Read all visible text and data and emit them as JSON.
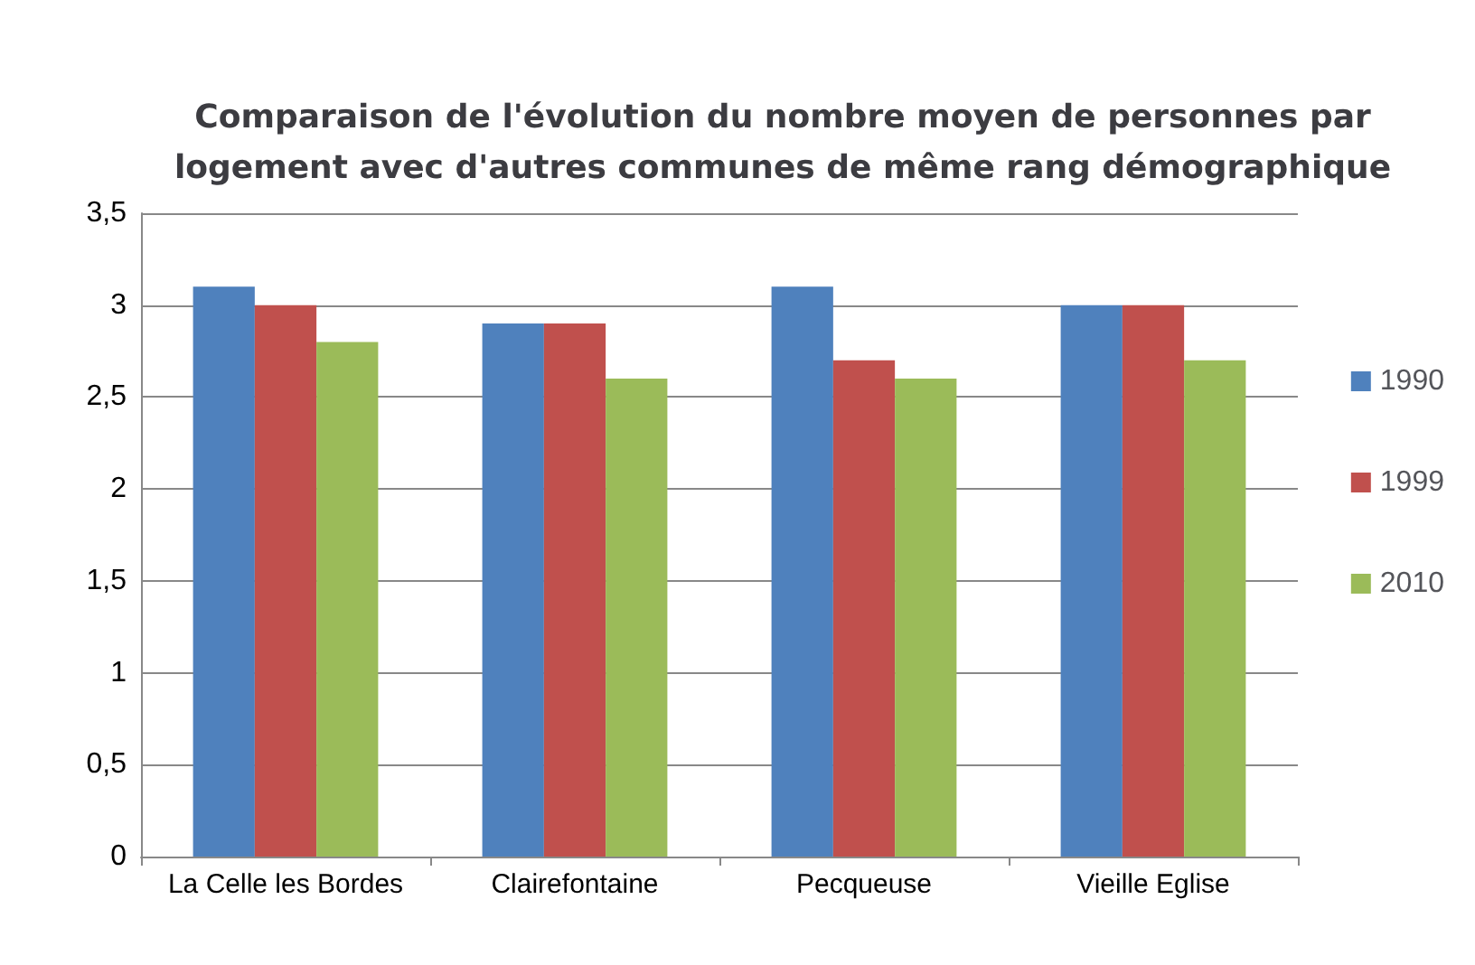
{
  "chart_data": {
    "type": "bar",
    "title": "Comparaison de l'évolution du nombre moyen de personnes par\nlogement avec d'autres communes de même rang démographique",
    "categories": [
      "La Celle les Bordes",
      "Clairefontaine",
      "Pecqueuse",
      "Vieille Eglise"
    ],
    "series": [
      {
        "name": "1990",
        "color": "#4f81bd",
        "values": [
          3.1,
          2.9,
          3.1,
          3.0
        ]
      },
      {
        "name": "1999",
        "color": "#c0504d",
        "values": [
          3.0,
          2.9,
          2.7,
          3.0
        ]
      },
      {
        "name": "2010",
        "color": "#9bbb59",
        "values": [
          2.8,
          2.6,
          2.6,
          2.7
        ]
      }
    ],
    "ylim": [
      0,
      3.5
    ],
    "yticks": [
      0,
      {
        "value": 0.5,
        "label": "0,5"
      },
      1,
      {
        "value": 1.5,
        "label": "1,5"
      },
      2,
      {
        "value": 2.5,
        "label": "2,5"
      },
      3,
      {
        "value": 3.5,
        "label": "3,5"
      }
    ],
    "grid": "y",
    "legend": "right"
  }
}
